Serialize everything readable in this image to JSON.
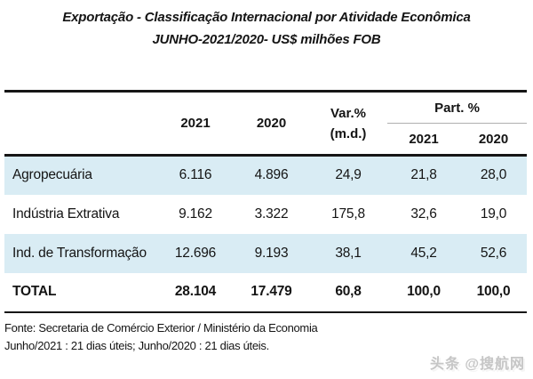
{
  "title": {
    "line1": "Exportação - Classificação Internacional por Atividade Econômica",
    "line2": "JUNHO-2021/2020- US$ milhões FOB"
  },
  "table": {
    "header": {
      "col_2021": "2021",
      "col_2020": "2020",
      "var_line1": "Var.%",
      "var_line2": "(m.d.)",
      "part_group": "Part. %",
      "part_2021": "2021",
      "part_2020": "2020"
    },
    "rows": [
      {
        "label": "Agropecuária",
        "y2021": "6.116",
        "y2020": "4.896",
        "var": "24,9",
        "p2021": "21,8",
        "p2020": "28,0"
      },
      {
        "label": "Indústria Extrativa",
        "y2021": "9.162",
        "y2020": "3.322",
        "var": "175,8",
        "p2021": "32,6",
        "p2020": "19,0"
      },
      {
        "label": "Ind. de Transformação",
        "y2021": "12.696",
        "y2020": "9.193",
        "var": "38,1",
        "p2021": "45,2",
        "p2020": "52,6"
      },
      {
        "label": "TOTAL",
        "y2021": "28.104",
        "y2020": "17.479",
        "var": "60,8",
        "p2021": "100,0",
        "p2020": "100,0"
      }
    ],
    "colors": {
      "row_shade": "#d9ecf4",
      "rule_dark": "#161616",
      "rule_gray": "#b0b0b0"
    }
  },
  "footer": {
    "source": "Fonte: Secretaria de Comércio Exterior / Ministério da Economia",
    "note": "Junho/2021 : 21 dias úteis; Junho/2020 : 21 dias úteis."
  },
  "watermark": {
    "text": "头条 @搜航网",
    "color": "#c6c6c6"
  }
}
